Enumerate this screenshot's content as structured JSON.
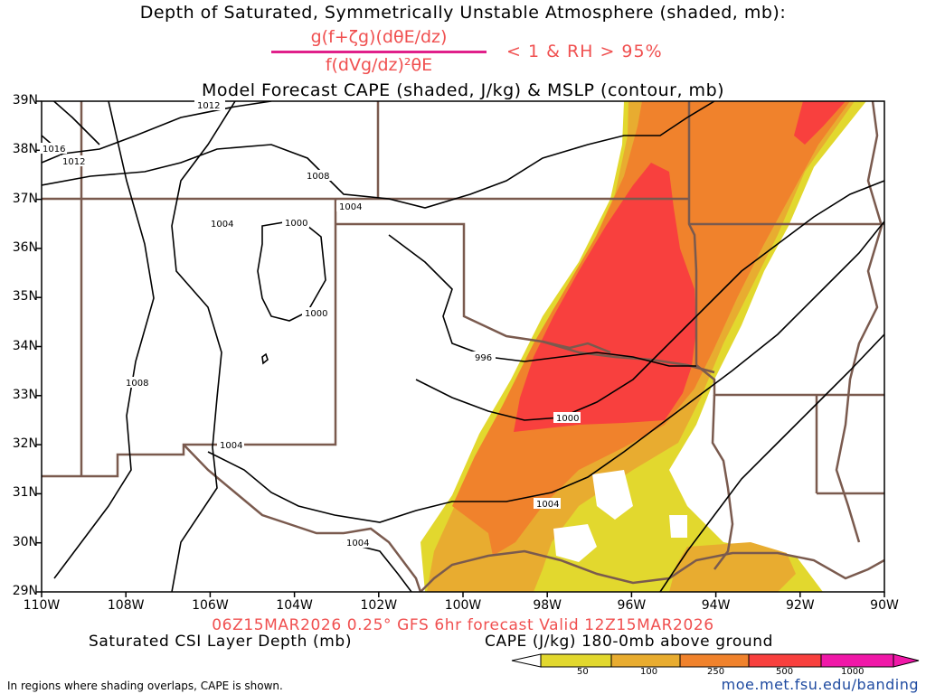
{
  "header": {
    "line1": "Depth of Saturated, Symmetrically Unstable Atmosphere (shaded, mb):",
    "numerator": "g(f+ζg)(dθE/dz)",
    "denominator": "f(dVg/dz)²θE",
    "condition": "< 1 & RH > 95%",
    "line3": "Model Forecast CAPE (shaded, J/kg) & MSLP (contour, mb)"
  },
  "map": {
    "lat_labels": [
      "39N",
      "38N",
      "37N",
      "36N",
      "35N",
      "34N",
      "33N",
      "32N",
      "31N",
      "30N",
      "29N"
    ],
    "lon_labels": [
      "110W",
      "108W",
      "106W",
      "104W",
      "102W",
      "100W",
      "98W",
      "96W",
      "94W",
      "92W",
      "90W"
    ],
    "isobar_labels": [
      "1012",
      "1016",
      "1012",
      "1008",
      "1004",
      "1004",
      "1000",
      "1000",
      "996",
      "1008",
      "1004",
      "1000",
      "1004",
      "1004"
    ],
    "colors": {
      "state_borders": "#7a5a4e",
      "isobars": "#000000",
      "cape_50": "#e2d82e",
      "cape_100": "#e8ac30",
      "cape_250": "#f0822c",
      "cape_500": "#f8403e",
      "cape_1000": "#f018a8"
    }
  },
  "footer": {
    "valid_line": "06Z15MAR2026 0.25° GFS 6hr forecast Valid 12Z15MAR2026",
    "csi_label": "Saturated CSI Layer Depth (mb)",
    "cape_label": "CAPE (J/kg) 180-0mb above ground",
    "colorbar_ticks": [
      "50",
      "100",
      "250",
      "500",
      "1000"
    ],
    "note": "In regions where shading overlaps, CAPE is shown.",
    "url": "moe.met.fsu.edu/banding"
  }
}
